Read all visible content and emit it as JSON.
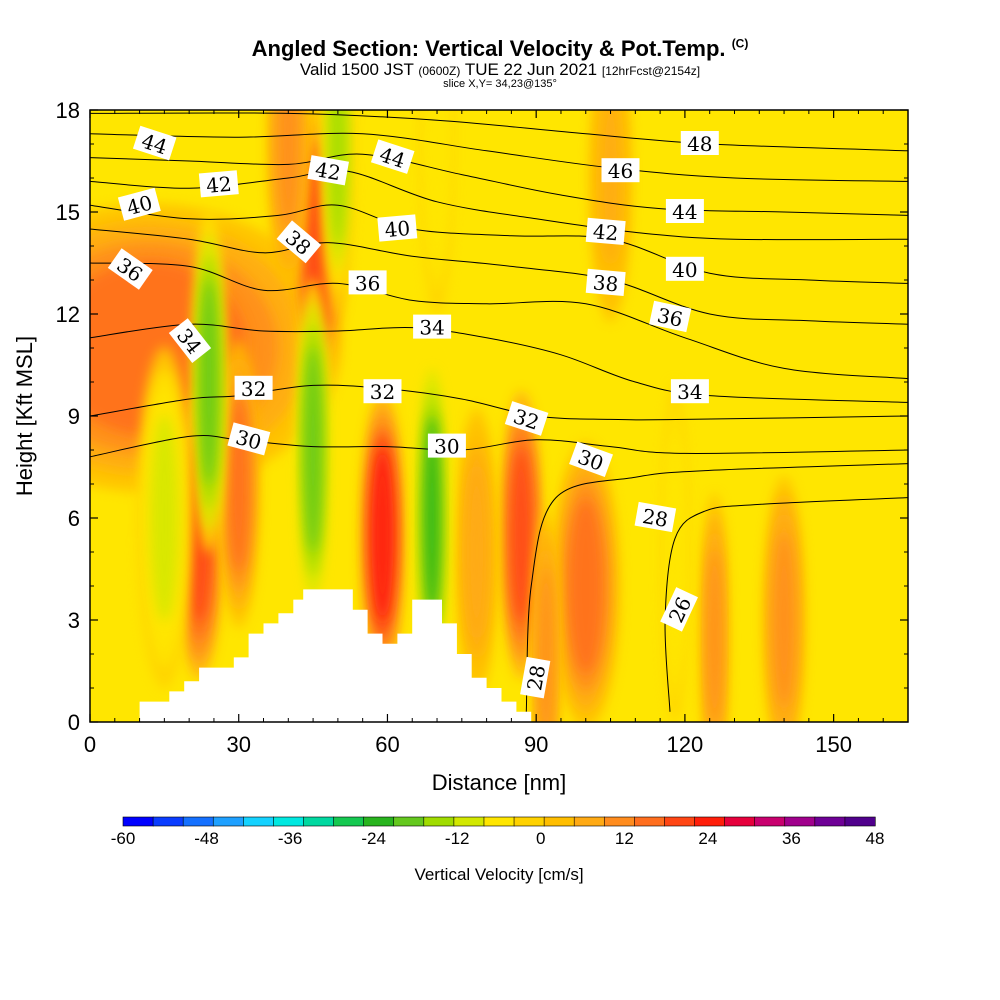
{
  "title": {
    "main": "Angled Section: Vertical Velocity & Pot.Temp.",
    "copyright": "(C)",
    "valid_prefix": "Valid 1500 JST",
    "valid_utc": "(0600Z)",
    "valid_date": "TUE 22 Jun 2021",
    "forecast": "[12hrFcst@2154z]",
    "slice": "slice X,Y= 34,23@135°"
  },
  "chart_data": {
    "type": "heatmap",
    "xlabel": "Distance [nm]",
    "ylabel": "Height [Kft MSL]",
    "xlim": [
      0,
      165
    ],
    "ylim": [
      0,
      18
    ],
    "x_ticks": [
      0,
      30,
      60,
      90,
      120,
      150
    ],
    "y_ticks": [
      0,
      3,
      6,
      9,
      12,
      15,
      18
    ],
    "colorbar": {
      "label": "Vertical Velocity [cm/s]",
      "min": -60,
      "max": 48,
      "step": 4,
      "tick_labels": [
        "-60",
        "-48",
        "-36",
        "-24",
        "-12",
        "0",
        "12",
        "24",
        "36",
        "48"
      ],
      "colors": [
        "#0000ff",
        "#0a3cff",
        "#1470ff",
        "#1ea0ff",
        "#14d2ff",
        "#00e8e0",
        "#00d8a0",
        "#14c850",
        "#28b41e",
        "#64c81e",
        "#a0dc00",
        "#d2e800",
        "#ffe600",
        "#ffd200",
        "#ffbe00",
        "#ffaa14",
        "#ff8c1e",
        "#ff6e1e",
        "#ff4614",
        "#ff1e0a",
        "#e6003c",
        "#c8006e",
        "#a0008c",
        "#6e0096",
        "#50008c"
      ]
    },
    "terrain": [
      [
        0,
        0
      ],
      [
        10,
        0
      ],
      [
        10,
        0.6
      ],
      [
        16,
        0.6
      ],
      [
        16,
        0.9
      ],
      [
        19,
        0.9
      ],
      [
        19,
        1.2
      ],
      [
        22,
        1.2
      ],
      [
        22,
        1.6
      ],
      [
        29,
        1.6
      ],
      [
        29,
        1.9
      ],
      [
        32,
        1.9
      ],
      [
        32,
        2.6
      ],
      [
        35,
        2.6
      ],
      [
        35,
        2.9
      ],
      [
        38,
        2.9
      ],
      [
        38,
        3.2
      ],
      [
        41,
        3.2
      ],
      [
        41,
        3.6
      ],
      [
        43,
        3.6
      ],
      [
        43,
        3.9
      ],
      [
        53,
        3.9
      ],
      [
        53,
        3.3
      ],
      [
        56,
        3.3
      ],
      [
        56,
        2.6
      ],
      [
        59,
        2.6
      ],
      [
        59,
        2.3
      ],
      [
        62,
        2.3
      ],
      [
        62,
        2.6
      ],
      [
        65,
        2.6
      ],
      [
        65,
        3.6
      ],
      [
        71,
        3.6
      ],
      [
        71,
        2.9
      ],
      [
        74,
        2.9
      ],
      [
        74,
        2.0
      ],
      [
        77,
        2.0
      ],
      [
        77,
        1.3
      ],
      [
        80,
        1.3
      ],
      [
        80,
        1.0
      ],
      [
        83,
        1.0
      ],
      [
        83,
        0.6
      ],
      [
        86,
        0.6
      ],
      [
        86,
        0.3
      ],
      [
        89,
        0.3
      ],
      [
        89,
        0
      ],
      [
        0,
        0
      ]
    ],
    "updrafts": [
      {
        "x": 12,
        "y": 11,
        "w": 28,
        "value": 16
      },
      {
        "x": 22,
        "y": 5.5,
        "w": 3.5,
        "value": 20
      },
      {
        "x": 30,
        "y": 7,
        "w": 3,
        "value": 16
      },
      {
        "x": 46,
        "y": 14,
        "w": 4,
        "value": 18
      },
      {
        "x": 40,
        "y": 17,
        "w": 3,
        "value": 12
      },
      {
        "x": 59,
        "y": 5.5,
        "w": 3.2,
        "value": 26
      },
      {
        "x": 87,
        "y": 5.5,
        "w": 3,
        "value": 22
      },
      {
        "x": 100,
        "y": 4,
        "w": 5,
        "value": 14
      },
      {
        "x": 140,
        "y": 3,
        "w": 3,
        "value": 12
      },
      {
        "x": 126,
        "y": 2.5,
        "w": 2,
        "value": 10
      },
      {
        "x": 92,
        "y": 2,
        "w": 2,
        "value": 12
      },
      {
        "x": 78,
        "y": 5,
        "w": 3,
        "value": 8
      },
      {
        "x": 105,
        "y": 16,
        "w": 3,
        "value": 6
      }
    ],
    "downdrafts": [
      {
        "x": 24,
        "y": 10,
        "w": 2.5,
        "value": -18
      },
      {
        "x": 45,
        "y": 8,
        "w": 2.5,
        "value": -20
      },
      {
        "x": 69,
        "y": 6,
        "w": 2.5,
        "value": -22
      },
      {
        "x": 50,
        "y": 17,
        "w": 2.5,
        "value": -14
      },
      {
        "x": 70,
        "y": 17,
        "w": 2.5,
        "value": -8
      },
      {
        "x": 15,
        "y": 6,
        "w": 4,
        "value": -10
      },
      {
        "x": 118,
        "y": 5,
        "w": 2,
        "value": -8
      }
    ],
    "isentropes": [
      {
        "value": 26,
        "points": [
          [
            117,
            0.3
          ],
          [
            116,
            3
          ],
          [
            118,
            5.4
          ],
          [
            124,
            6.2
          ],
          [
            135,
            6.4
          ],
          [
            165,
            6.6
          ]
        ]
      },
      {
        "value": 28,
        "points": [
          [
            88,
            0.3
          ],
          [
            89,
            4
          ],
          [
            94,
            6.6
          ],
          [
            110,
            7.2
          ],
          [
            125,
            7.4
          ],
          [
            165,
            7.6
          ]
        ]
      },
      {
        "value": 30,
        "points": [
          [
            0,
            7.8
          ],
          [
            20,
            8.4
          ],
          [
            30,
            8.3
          ],
          [
            45,
            8.1
          ],
          [
            60,
            8.1
          ],
          [
            75,
            8.0
          ],
          [
            90,
            8.3
          ],
          [
            105,
            8.1
          ],
          [
            120,
            7.9
          ],
          [
            165,
            8.0
          ]
        ]
      },
      {
        "value": 32,
        "points": [
          [
            0,
            9.0
          ],
          [
            20,
            9.5
          ],
          [
            30,
            9.6
          ],
          [
            45,
            9.9
          ],
          [
            60,
            9.8
          ],
          [
            75,
            9.5
          ],
          [
            90,
            9.0
          ],
          [
            105,
            8.9
          ],
          [
            120,
            8.9
          ],
          [
            165,
            9.0
          ]
        ]
      },
      {
        "value": 34,
        "points": [
          [
            0,
            11.3
          ],
          [
            20,
            11.7
          ],
          [
            35,
            11.5
          ],
          [
            50,
            11.5
          ],
          [
            65,
            11.6
          ],
          [
            80,
            11.3
          ],
          [
            95,
            10.8
          ],
          [
            110,
            10.0
          ],
          [
            125,
            9.6
          ],
          [
            165,
            9.4
          ]
        ]
      },
      {
        "value": 36,
        "points": [
          [
            0,
            13.5
          ],
          [
            20,
            13.4
          ],
          [
            35,
            12.7
          ],
          [
            50,
            12.9
          ],
          [
            65,
            12.4
          ],
          [
            80,
            12.3
          ],
          [
            100,
            12.3
          ],
          [
            120,
            11.3
          ],
          [
            140,
            10.4
          ],
          [
            165,
            10.1
          ]
        ]
      },
      {
        "value": 38,
        "points": [
          [
            0,
            14.5
          ],
          [
            20,
            14.2
          ],
          [
            35,
            13.8
          ],
          [
            48,
            14.1
          ],
          [
            65,
            13.7
          ],
          [
            85,
            13.4
          ],
          [
            105,
            13.0
          ],
          [
            125,
            12.0
          ],
          [
            145,
            11.8
          ],
          [
            165,
            11.7
          ]
        ]
      },
      {
        "value": 40,
        "points": [
          [
            0,
            15.2
          ],
          [
            20,
            14.8
          ],
          [
            38,
            14.9
          ],
          [
            50,
            15.2
          ],
          [
            65,
            14.5
          ],
          [
            85,
            14.3
          ],
          [
            105,
            14.2
          ],
          [
            125,
            13.2
          ],
          [
            145,
            13.0
          ],
          [
            165,
            12.9
          ]
        ]
      },
      {
        "value": 42,
        "points": [
          [
            0,
            15.9
          ],
          [
            20,
            15.7
          ],
          [
            40,
            16.0
          ],
          [
            52,
            16.2
          ],
          [
            70,
            15.3
          ],
          [
            90,
            14.8
          ],
          [
            110,
            14.4
          ],
          [
            130,
            14.2
          ],
          [
            165,
            14.2
          ]
        ]
      },
      {
        "value": 44,
        "points": [
          [
            0,
            16.6
          ],
          [
            20,
            16.5
          ],
          [
            40,
            16.4
          ],
          [
            55,
            16.7
          ],
          [
            75,
            16.1
          ],
          [
            95,
            15.5
          ],
          [
            115,
            15.1
          ],
          [
            140,
            15.0
          ],
          [
            165,
            14.9
          ]
        ]
      },
      {
        "value": 46,
        "points": [
          [
            0,
            17.3
          ],
          [
            30,
            17.2
          ],
          [
            55,
            17.3
          ],
          [
            80,
            16.8
          ],
          [
            105,
            16.3
          ],
          [
            130,
            16.0
          ],
          [
            165,
            15.9
          ]
        ]
      },
      {
        "value": 48,
        "points": [
          [
            0,
            17.9
          ],
          [
            40,
            17.9
          ],
          [
            70,
            17.7
          ],
          [
            100,
            17.3
          ],
          [
            125,
            17.0
          ],
          [
            165,
            16.8
          ]
        ]
      }
    ],
    "contour_labels": [
      {
        "text": "44",
        "x": 13,
        "y": 17.0,
        "angle": 18
      },
      {
        "text": "42",
        "x": 26,
        "y": 15.8,
        "angle": -5
      },
      {
        "text": "40",
        "x": 10,
        "y": 15.2,
        "angle": -15
      },
      {
        "text": "42",
        "x": 48,
        "y": 16.2,
        "angle": 10
      },
      {
        "text": "44",
        "x": 61,
        "y": 16.6,
        "angle": 18
      },
      {
        "text": "48",
        "x": 123,
        "y": 17.0,
        "angle": 0
      },
      {
        "text": "46",
        "x": 107,
        "y": 16.2,
        "angle": 0
      },
      {
        "text": "44",
        "x": 120,
        "y": 15.0,
        "angle": 0
      },
      {
        "text": "42",
        "x": 104,
        "y": 14.4,
        "angle": 5
      },
      {
        "text": "40",
        "x": 62,
        "y": 14.5,
        "angle": -5
      },
      {
        "text": "38",
        "x": 42,
        "y": 14.1,
        "angle": 40
      },
      {
        "text": "36",
        "x": 8,
        "y": 13.3,
        "angle": 35
      },
      {
        "text": "40",
        "x": 120,
        "y": 13.3,
        "angle": 0
      },
      {
        "text": "38",
        "x": 104,
        "y": 12.9,
        "angle": 5
      },
      {
        "text": "36",
        "x": 56,
        "y": 12.9,
        "angle": 0
      },
      {
        "text": "36",
        "x": 117,
        "y": 11.9,
        "angle": 12
      },
      {
        "text": "34",
        "x": 20,
        "y": 11.2,
        "angle": 52
      },
      {
        "text": "34",
        "x": 69,
        "y": 11.6,
        "angle": 0
      },
      {
        "text": "32",
        "x": 33,
        "y": 9.8,
        "angle": 0
      },
      {
        "text": "32",
        "x": 59,
        "y": 9.7,
        "angle": 0
      },
      {
        "text": "34",
        "x": 121,
        "y": 9.7,
        "angle": 0
      },
      {
        "text": "32",
        "x": 88,
        "y": 8.9,
        "angle": 18
      },
      {
        "text": "30",
        "x": 32,
        "y": 8.3,
        "angle": 15
      },
      {
        "text": "30",
        "x": 72,
        "y": 8.1,
        "angle": 0
      },
      {
        "text": "30",
        "x": 101,
        "y": 7.7,
        "angle": 20
      },
      {
        "text": "28",
        "x": 114,
        "y": 6.0,
        "angle": 10
      },
      {
        "text": "26",
        "x": 119,
        "y": 3.3,
        "angle": -65
      },
      {
        "text": "28",
        "x": 90,
        "y": 1.3,
        "angle": -80
      }
    ]
  }
}
